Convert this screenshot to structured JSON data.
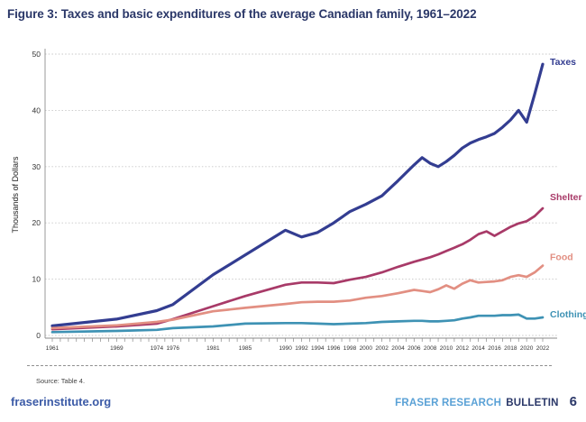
{
  "title": "Figure 3: Taxes and basic expenditures of the average Canadian family, 1961–2022",
  "source_note": "Source: Table 4.",
  "footer": {
    "site": "fraserinstitute.org",
    "brand_light": "FRASER RESEARCH",
    "brand_dark": "BULLETIN",
    "page_number": "6"
  },
  "palette": {
    "title_navy": "#2a3768",
    "taxes_line": "#333d91",
    "shelter_line": "#a83a68",
    "food_line": "#e28f82",
    "clothing_line": "#3e92b4",
    "footer_link_blue": "#3c5ba7",
    "brand_light_blue": "#5aa1d6"
  },
  "chart_data": {
    "type": "line",
    "title": "Figure 3: Taxes and basic expenditures of the average Canadian family, 1961–2022",
    "xlabel": "",
    "ylabel": "Thousands of Dollars",
    "xlim": [
      1961,
      2022
    ],
    "ylim": [
      0,
      50
    ],
    "y_ticks": [
      0,
      10,
      20,
      30,
      40,
      50
    ],
    "x_tick_labels": [
      1961,
      1969,
      1974,
      1976,
      1981,
      1985,
      1990,
      1992,
      1994,
      1996,
      1998,
      2000,
      2002,
      2004,
      2006,
      2008,
      2010,
      2012,
      2014,
      2016,
      2018,
      2020,
      2022
    ],
    "grid": "horizontal dashed gridlines",
    "legend_position": "line-end labels at right",
    "units": "thousands of dollars",
    "x": [
      1961,
      1969,
      1974,
      1976,
      1981,
      1985,
      1990,
      1992,
      1994,
      1996,
      1998,
      2000,
      2002,
      2004,
      2006,
      2007,
      2008,
      2009,
      2010,
      2011,
      2012,
      2013,
      2014,
      2015,
      2016,
      2017,
      2018,
      2019,
      2020,
      2021,
      2022
    ],
    "series": [
      {
        "name": "Taxes",
        "color": "#333d91",
        "values": [
          1.7,
          2.9,
          4.4,
          5.5,
          10.8,
          14.3,
          18.7,
          17.5,
          18.3,
          20.0,
          22.0,
          23.3,
          24.8,
          27.5,
          30.3,
          31.6,
          30.6,
          30.0,
          30.9,
          32.0,
          33.3,
          34.2,
          34.8,
          35.3,
          35.9,
          37.0,
          38.3,
          40.0,
          37.9,
          42.9,
          48.2
        ]
      },
      {
        "name": "Shelter",
        "color": "#a83a68",
        "values": [
          1.1,
          1.6,
          2.1,
          2.9,
          5.2,
          7.0,
          9.0,
          9.4,
          9.4,
          9.3,
          9.9,
          10.4,
          11.2,
          12.2,
          13.1,
          13.5,
          13.9,
          14.4,
          15.0,
          15.6,
          16.2,
          17.0,
          18.0,
          18.5,
          17.7,
          18.5,
          19.3,
          19.9,
          20.3,
          21.2,
          22.6
        ]
      },
      {
        "name": "Food",
        "color": "#e28f82",
        "values": [
          1.3,
          1.8,
          2.4,
          2.8,
          4.3,
          4.9,
          5.6,
          5.9,
          6.0,
          6.0,
          6.2,
          6.7,
          7.0,
          7.5,
          8.1,
          7.9,
          7.7,
          8.2,
          8.9,
          8.3,
          9.2,
          9.8,
          9.4,
          9.5,
          9.6,
          9.8,
          10.4,
          10.7,
          10.4,
          11.2,
          12.4
        ]
      },
      {
        "name": "Clothing",
        "color": "#3e92b4",
        "values": [
          0.6,
          0.8,
          1.0,
          1.3,
          1.6,
          2.1,
          2.2,
          2.2,
          2.1,
          2.0,
          2.1,
          2.2,
          2.4,
          2.5,
          2.6,
          2.6,
          2.5,
          2.5,
          2.6,
          2.7,
          3.0,
          3.2,
          3.5,
          3.5,
          3.5,
          3.6,
          3.6,
          3.7,
          3.0,
          3.0,
          3.2
        ]
      }
    ]
  }
}
